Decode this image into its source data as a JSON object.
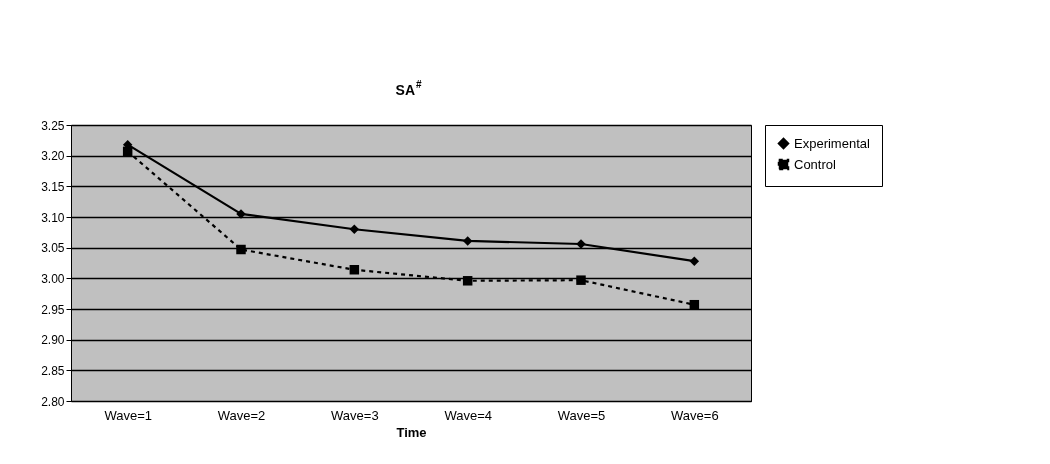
{
  "chart_data": {
    "type": "line",
    "title": "SA$^{#}$",
    "xlabel": "Time",
    "categories": [
      "Wave=1",
      "Wave=2",
      "Wave=3",
      "Wave=4",
      "Wave=5",
      "Wave=6"
    ],
    "series": [
      {
        "name": "Experimental",
        "color": "#000000",
        "marker": "diamond",
        "line_style": "solid",
        "values": [
          3.218,
          3.105,
          3.08,
          3.061,
          3.056,
          3.028
        ]
      },
      {
        "name": "Control",
        "color": "#000000",
        "marker": "square",
        "line_style": "dashed",
        "values": [
          3.207,
          3.047,
          3.014,
          2.996,
          2.997,
          2.957
        ]
      }
    ],
    "ylim": [
      2.8,
      3.25
    ],
    "yticks": [
      {
        "value": 2.8,
        "label": "2.80"
      },
      2.85,
      {
        "value": 2.9,
        "label": "2.90"
      },
      2.95,
      {
        "value": 3.0,
        "label": "3.00"
      },
      3.05,
      {
        "value": 3.1,
        "label": "3.10"
      },
      3.15,
      {
        "value": 3.2,
        "label": "3.20"
      },
      3.25
    ],
    "grid": "y",
    "legend": "right"
  }
}
